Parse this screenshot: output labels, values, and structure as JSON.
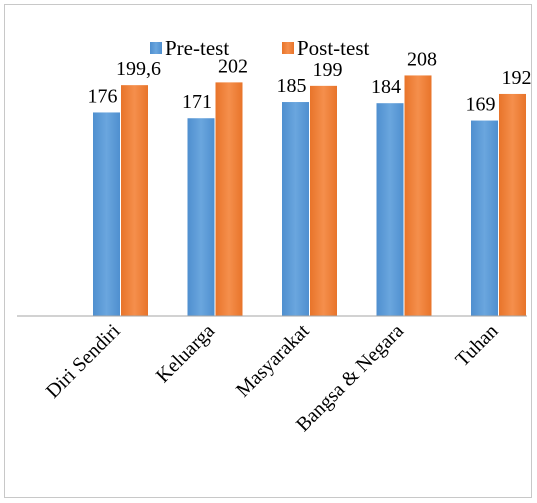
{
  "chart_data": {
    "type": "bar",
    "categories": [
      "Diri Sendiri",
      "Keluarga",
      "Masyarakat",
      "Bangsa & Negara",
      "Tuhan"
    ],
    "series": [
      {
        "name": "Pre-test",
        "values": [
          176,
          171,
          185,
          184,
          169
        ],
        "labels": [
          "176",
          "171",
          "185",
          "184",
          "169"
        ],
        "color": "#5b9bd5"
      },
      {
        "name": "Post-test",
        "values": [
          199.6,
          202,
          199,
          208,
          192
        ],
        "labels": [
          "199,6",
          "202",
          "199",
          "208",
          "192"
        ],
        "color": "#ed7d31"
      }
    ],
    "ylim": [
      0,
      230
    ],
    "grid": false,
    "legend_position": "top"
  }
}
